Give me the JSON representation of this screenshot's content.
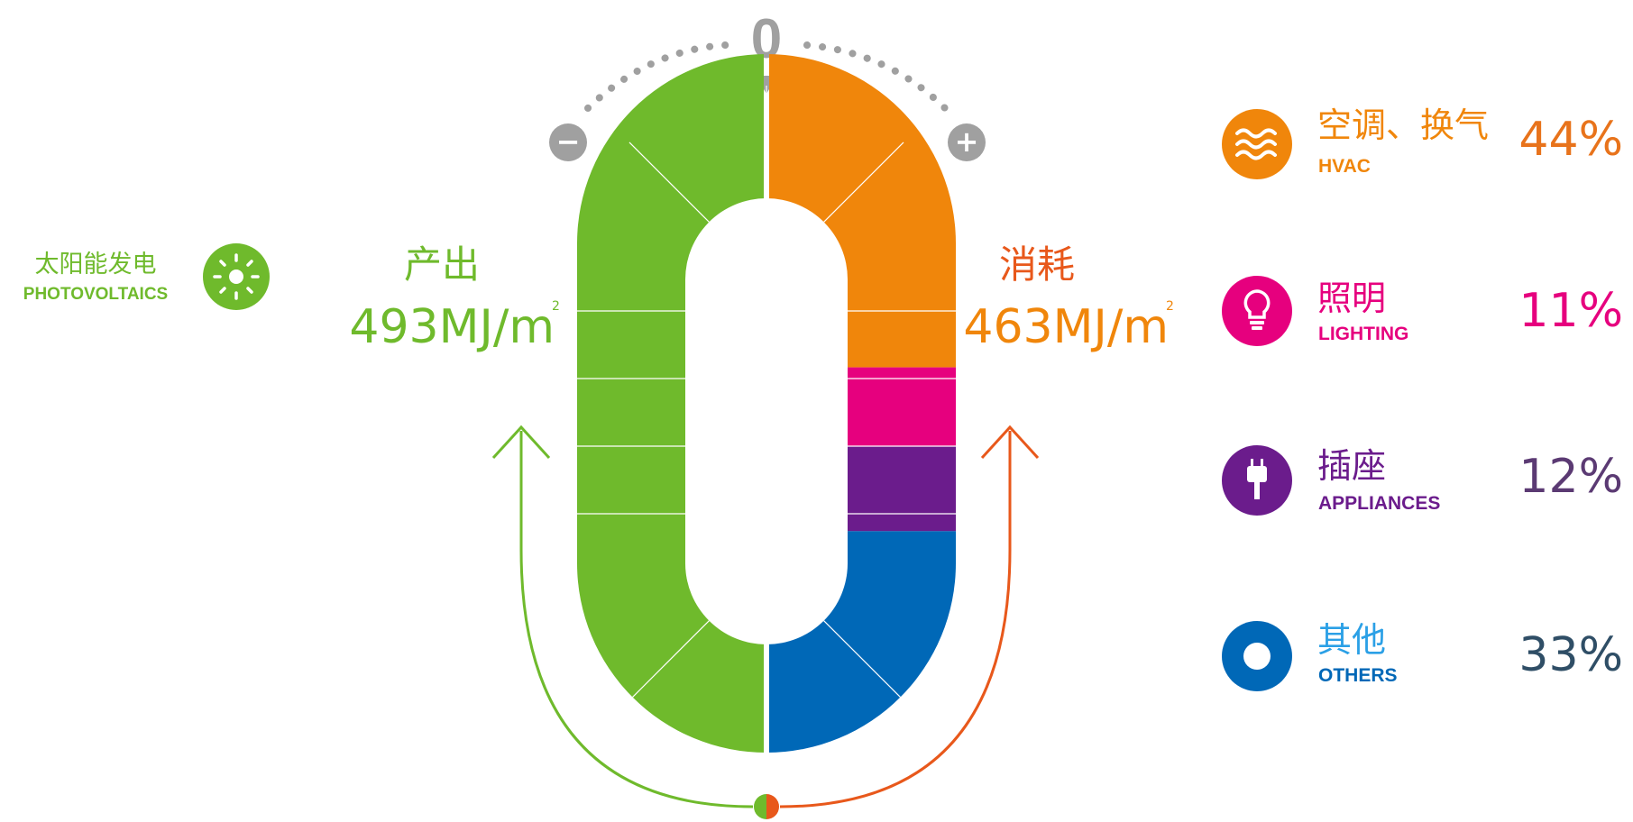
{
  "chart_data": {
    "type": "pie",
    "title": "",
    "center_label": "0",
    "minus_symbol": "−",
    "plus_symbol": "+",
    "production": {
      "label": "产出",
      "value_text": "493MJ/m",
      "unit_sup": "2",
      "value": 493,
      "unit": "MJ/m²",
      "color": "#6FBA2C",
      "source": {
        "label_cn": "太阳能发电",
        "label_en": "PHOTOVOLTAICS",
        "icon": "sun-icon"
      }
    },
    "consumption": {
      "label": "消耗",
      "value_text": "463MJ/m",
      "unit_sup": "2",
      "value": 463,
      "unit": "MJ/m²",
      "label_color": "#E8581B",
      "value_color": "#F0860B"
    },
    "series": [
      {
        "key": "hvac",
        "label_cn": "空调、换气",
        "label_en": "HVAC",
        "percent_text": "44%",
        "value": 44,
        "color": "#F0860B",
        "icon": "waves-icon"
      },
      {
        "key": "lighting",
        "label_cn": "照明",
        "label_en": "LIGHTING",
        "percent_text": "11%",
        "value": 11,
        "color": "#E6007E",
        "icon": "lightbulb-icon"
      },
      {
        "key": "appliances",
        "label_cn": "插座",
        "label_en": "APPLIANCES",
        "percent_text": "12%",
        "value": 12,
        "color": "#6B1C8C",
        "icon": "plug-icon"
      },
      {
        "key": "others",
        "label_cn": "其他",
        "label_en": "OTHERS",
        "percent_text": "33%",
        "value": 33,
        "color": "#0068B7",
        "icon": "ring-icon"
      }
    ],
    "legend_position": "right"
  }
}
